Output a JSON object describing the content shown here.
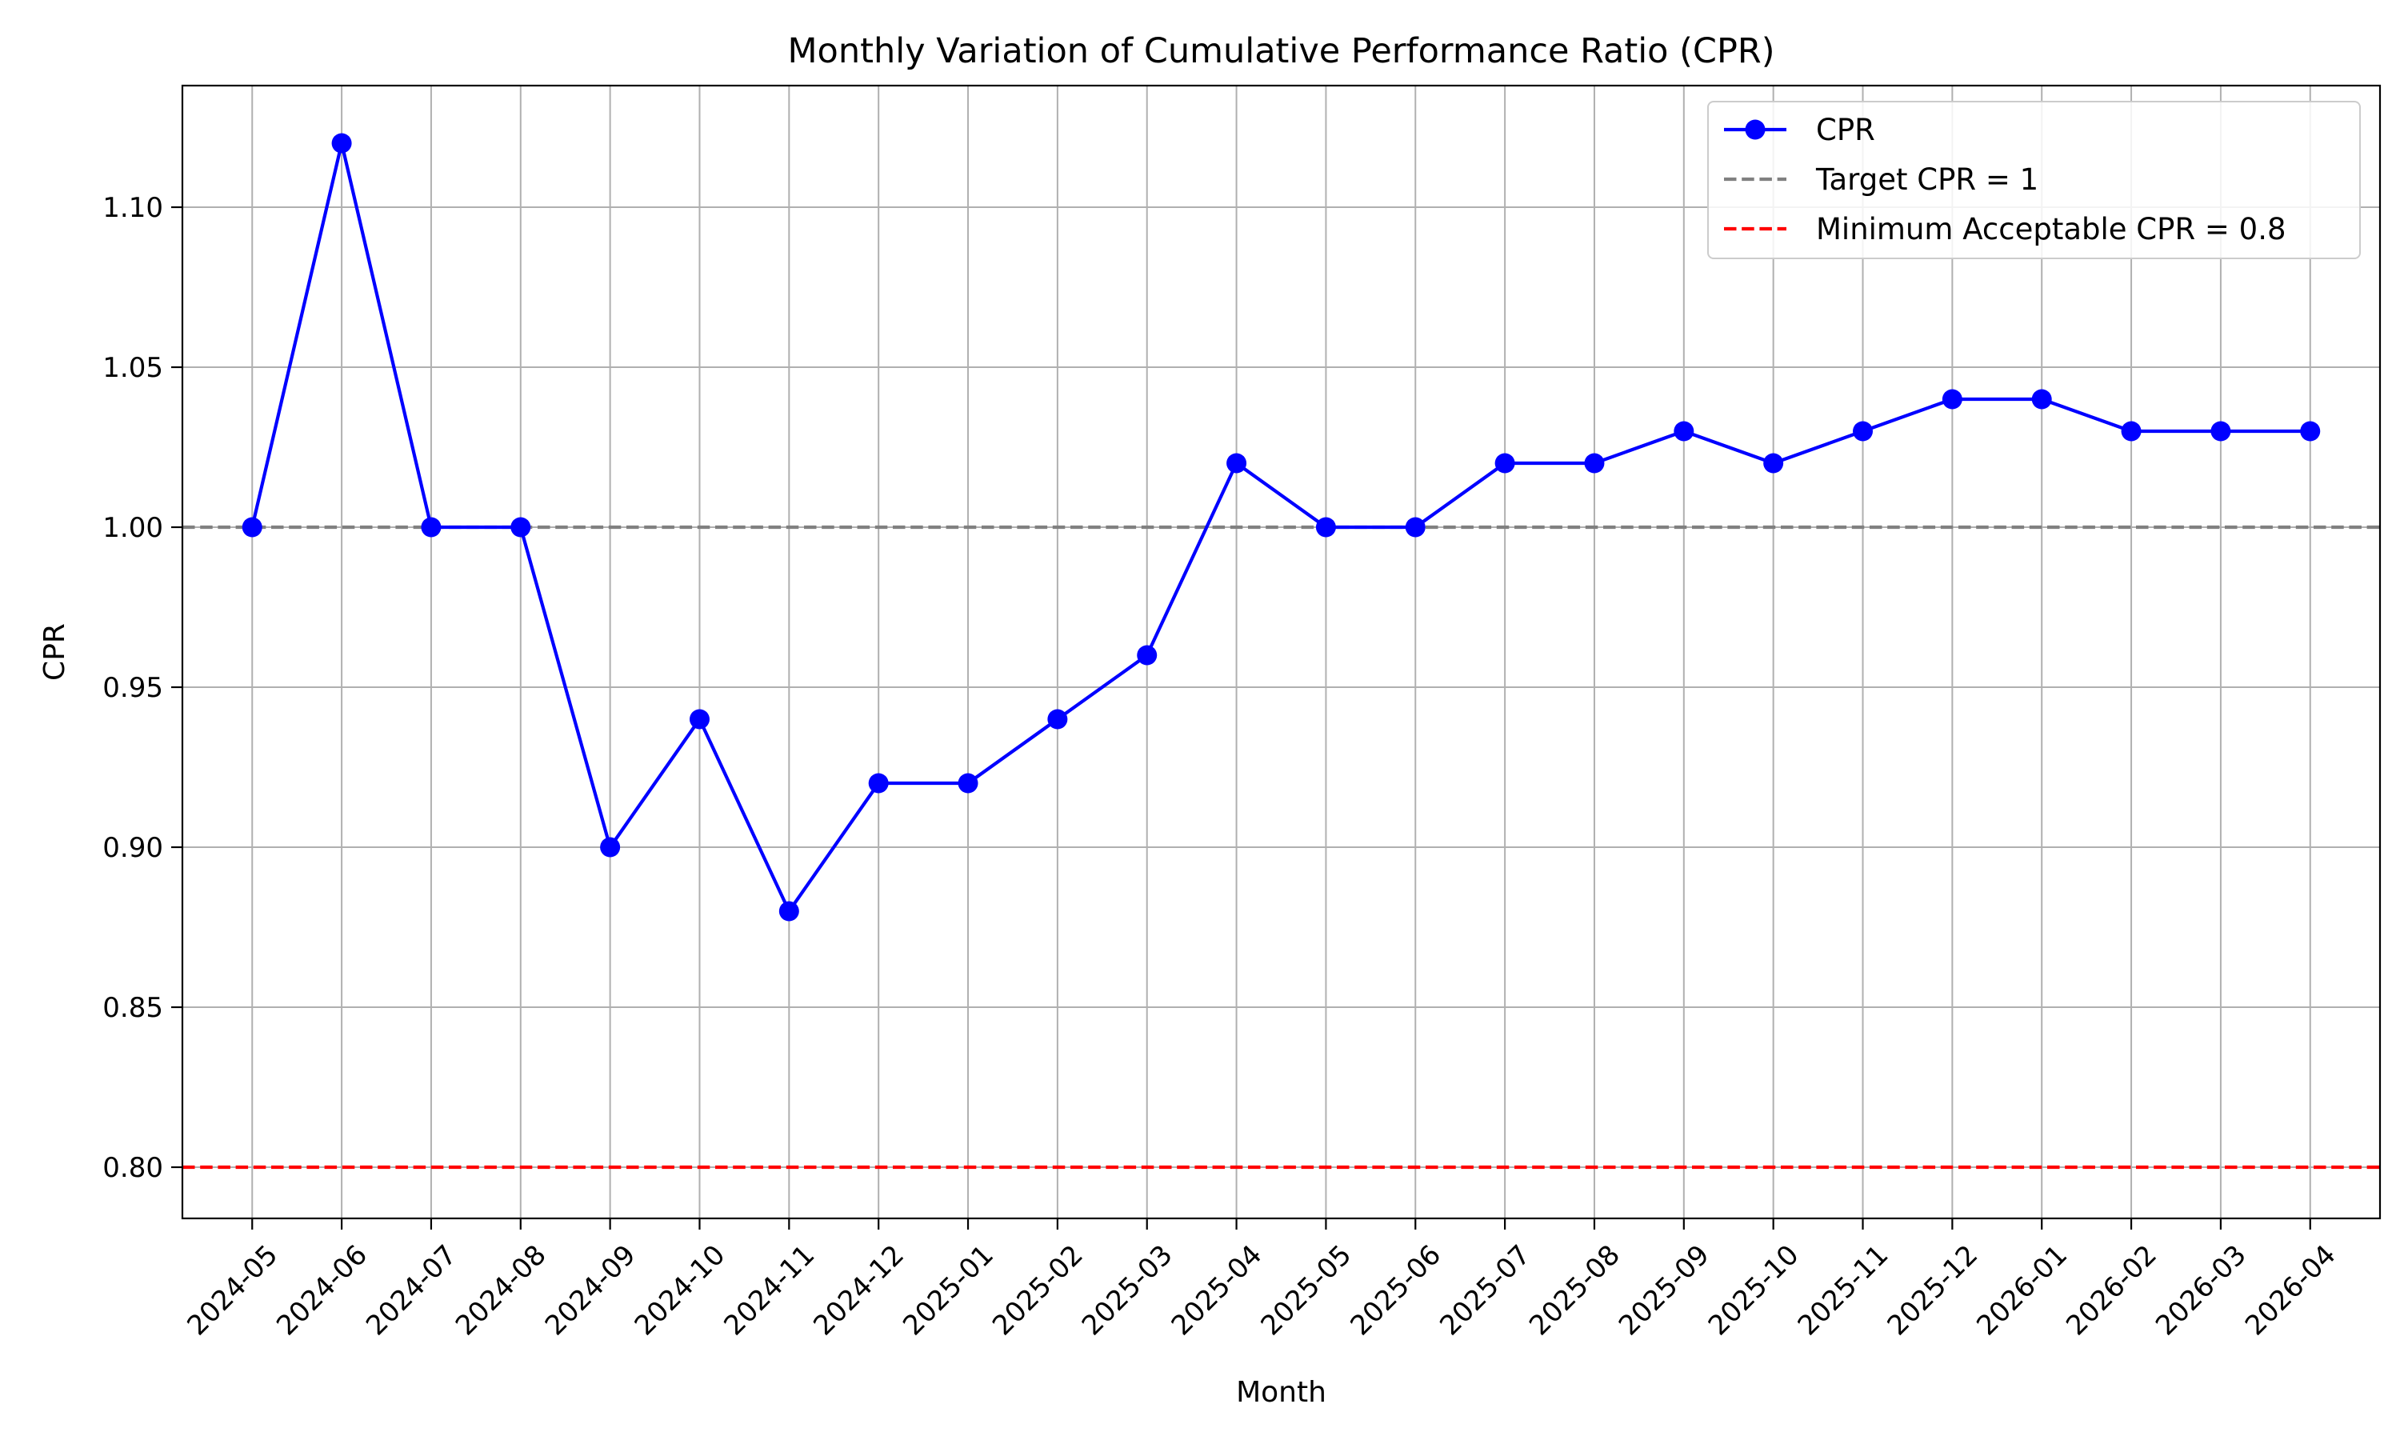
{
  "chart_data": {
    "type": "line",
    "title": "Monthly Variation of Cumulative Performance Ratio (CPR)",
    "xlabel": "Month",
    "ylabel": "CPR",
    "categories": [
      "2024-05",
      "2024-06",
      "2024-07",
      "2024-08",
      "2024-09",
      "2024-10",
      "2024-11",
      "2024-12",
      "2025-01",
      "2025-02",
      "2025-03",
      "2025-04",
      "2025-05",
      "2025-06",
      "2025-07",
      "2025-08",
      "2025-09",
      "2025-10",
      "2025-11",
      "2025-12",
      "2026-01",
      "2026-02",
      "2026-03",
      "2026-04"
    ],
    "series": [
      {
        "name": "CPR",
        "color": "#0000ff",
        "marker": "circle",
        "values": [
          1.0,
          1.12,
          1.0,
          1.0,
          0.9,
          0.94,
          0.88,
          0.92,
          0.92,
          0.94,
          0.96,
          1.02,
          1.0,
          1.0,
          1.02,
          1.02,
          1.03,
          1.02,
          1.03,
          1.04,
          1.04,
          1.03,
          1.03,
          1.03
        ]
      }
    ],
    "reference_lines": [
      {
        "name": "Target CPR = 1",
        "value": 1.0,
        "color": "#808080",
        "style": "dashed"
      },
      {
        "name": "Minimum Acceptable CPR = 0.8",
        "value": 0.8,
        "color": "#ff0000",
        "style": "dashed"
      }
    ],
    "ylim": [
      0.784,
      1.138
    ],
    "yticks": [
      0.8,
      0.85,
      0.9,
      0.95,
      1.0,
      1.05,
      1.1
    ],
    "ytick_labels": [
      "0.80",
      "0.85",
      "0.90",
      "0.95",
      "1.00",
      "1.05",
      "1.10"
    ],
    "grid": true,
    "legend_position": "top-right",
    "xtick_rotation": 45
  }
}
